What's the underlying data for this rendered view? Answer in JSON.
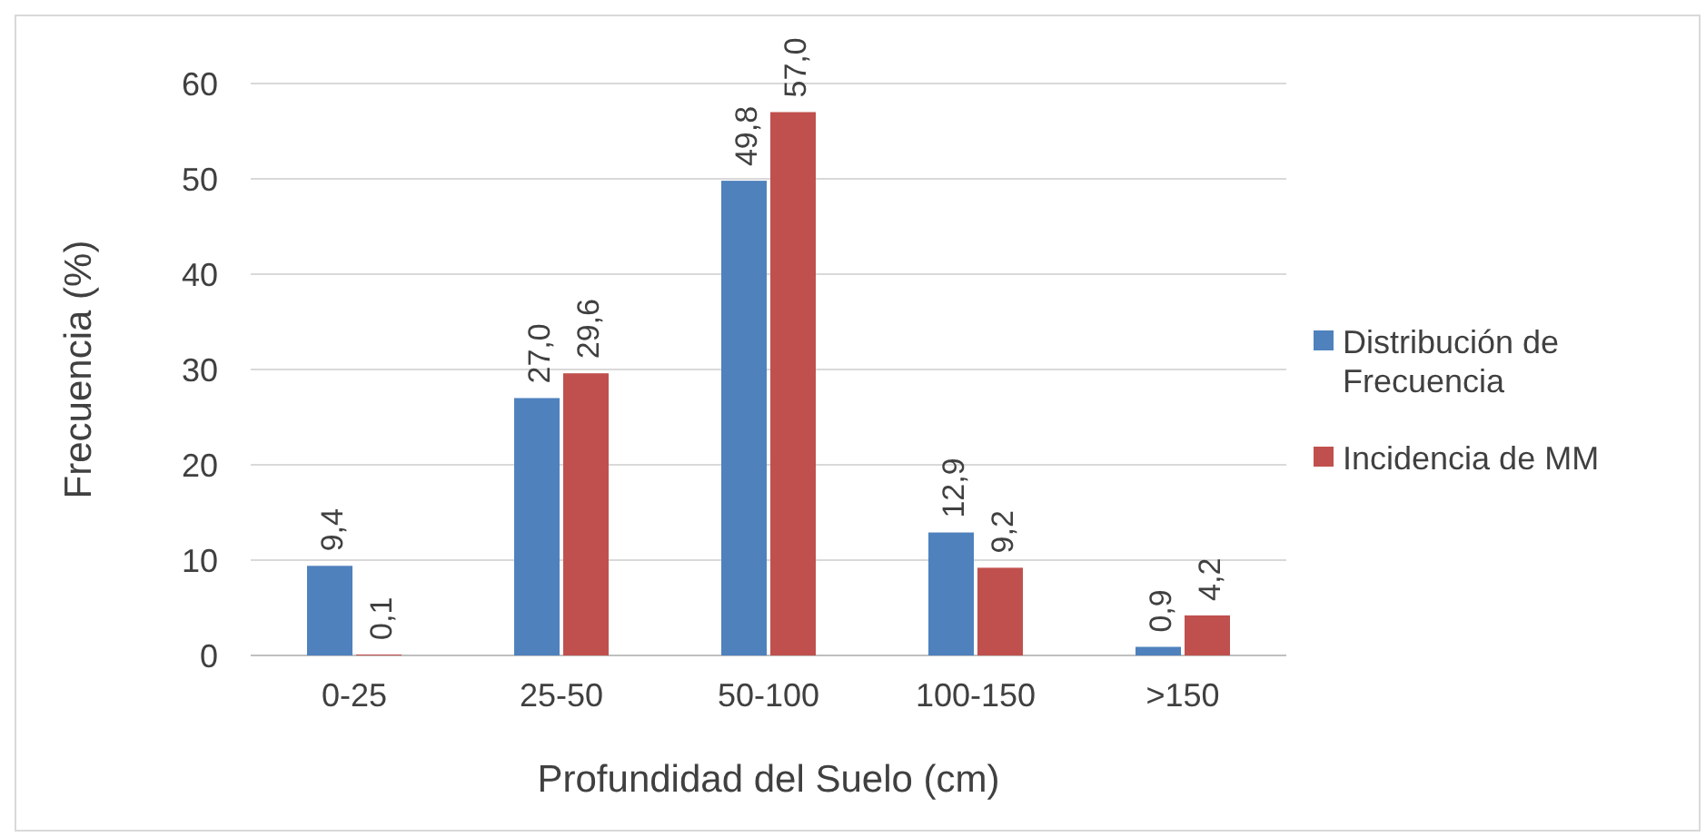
{
  "chart_data": {
    "type": "bar",
    "xlabel": "Profundidad del Suelo (cm)",
    "ylabel": "Frecuencia (%)",
    "categories": [
      "0-25",
      "25-50",
      "50-100",
      "100-150",
      ">150"
    ],
    "series": [
      {
        "name": "Distribución de Frecuencia",
        "color": "#4f81bd",
        "values": [
          9.4,
          27.0,
          49.8,
          12.9,
          0.9
        ],
        "value_labels": [
          "9,4",
          "27,0",
          "49,8",
          "12,9",
          "0,9"
        ]
      },
      {
        "name": "Incidencia de MM",
        "color": "#c0504d",
        "values": [
          0.1,
          29.6,
          57.0,
          9.2,
          4.2
        ],
        "value_labels": [
          "0,1",
          "29,6",
          "57,0",
          "9,2",
          "4,2"
        ]
      }
    ],
    "ylim": [
      0,
      60
    ],
    "yticks": [
      0,
      10,
      20,
      30,
      40,
      50,
      60
    ],
    "grid": "y",
    "legend": "right"
  }
}
